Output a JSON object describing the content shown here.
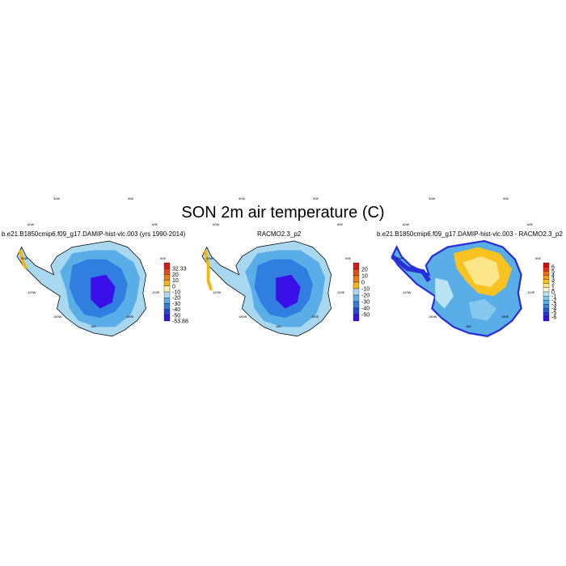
{
  "title": "SON 2m air temperature (C)",
  "panels": [
    {
      "title": "b.e21.B1850cmip6.f09_g17.DAMIP-hist-vlc.003 (yrs 1990-2014)",
      "colorbar": {
        "labels": [
          "32.33",
          "20",
          "10",
          "0",
          "-10",
          "-20",
          "-30",
          "-40",
          "-50",
          "-53.88"
        ],
        "colors": [
          "#d7191c",
          "#e84a1a",
          "#f07d10",
          "#f6b40f",
          "#fff3b0",
          "#a8d8f0",
          "#5aaee8",
          "#2f7ee0",
          "#2546d8",
          "#3a10e8"
        ]
      }
    },
    {
      "title": "RACMO2.3_p2",
      "colorbar": {
        "labels": [
          "20",
          "10",
          "0",
          "-10",
          "-20",
          "-30",
          "-40",
          "-50"
        ],
        "colors": [
          "#d7191c",
          "#e84a1a",
          "#f07d10",
          "#f6b40f",
          "#a8d8f0",
          "#5aaee8",
          "#2f7ee0",
          "#2546d8",
          "#3a10e8"
        ]
      }
    },
    {
      "title": "b.e21.B1850cmip6.f09_g17.DAMIP-hist-vlc.003 - RACMO2.3_p2",
      "colorbar": {
        "labels": [
          "6",
          "5",
          "4",
          "3",
          "2",
          "1",
          "0",
          "-1",
          "-2",
          "-3",
          "-4",
          "-5",
          "-6"
        ],
        "colors": [
          "#d01010",
          "#e83018",
          "#f06a18",
          "#f59a14",
          "#f8c320",
          "#fde68a",
          "#fff8d0",
          "#b8e4f4",
          "#86c8ee",
          "#5aaee8",
          "#3a86e0",
          "#2a5ad8",
          "#2a30d8",
          "#3a10e8"
        ]
      }
    }
  ],
  "map_labels": {
    "lon_top_left": "30W",
    "lon_top_right": "30E",
    "lon_left_upper": "60W",
    "lon_right_upper": "60E",
    "lon_left_mid": "90W",
    "lon_right_mid": "90E",
    "lon_left_lower": "120W",
    "lon_right_lower": "120E",
    "lon_bottom_left": "150W",
    "lon_bottom_right": "150E",
    "lon_bottom": "180"
  }
}
